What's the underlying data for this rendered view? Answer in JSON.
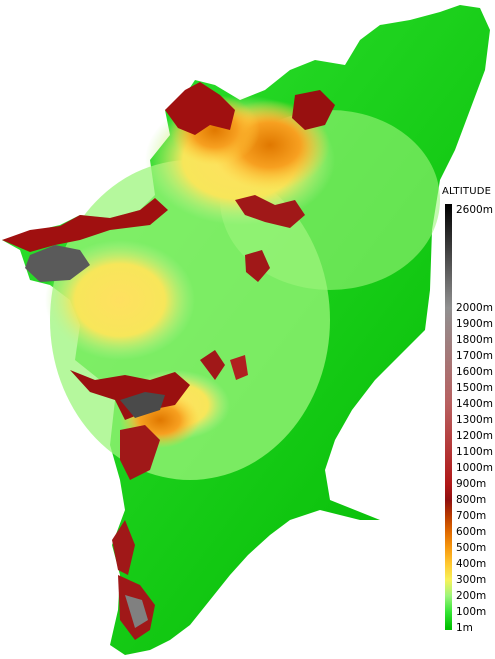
{
  "legend": {
    "title": "ALTITUDE",
    "top_label": "2600m",
    "labels": [
      "2000m",
      "1900m",
      "1800m",
      "1700m",
      "1600m",
      "1500m",
      "1400m",
      "1300m",
      "1200m",
      "1100m",
      "1000m",
      "900m",
      "800m",
      "700m",
      "600m",
      "500m",
      "400m",
      "300m",
      "200m",
      "100m",
      "1m"
    ],
    "color_stops": [
      {
        "value": "1m",
        "color": "#00c000"
      },
      {
        "value": "100m",
        "color": "#34e534"
      },
      {
        "value": "200m",
        "color": "#9cf57c"
      },
      {
        "value": "300m",
        "color": "#f7f25a"
      },
      {
        "value": "400m",
        "color": "#ffc830"
      },
      {
        "value": "500m",
        "color": "#f79a10"
      },
      {
        "value": "600m",
        "color": "#e06a00"
      },
      {
        "value": "700m",
        "color": "#b83a00"
      },
      {
        "value": "800m",
        "color": "#901010"
      },
      {
        "value": "900m",
        "color": "#b01818"
      },
      {
        "value": "1400m",
        "color": "#b86060"
      },
      {
        "value": "2000m",
        "color": "#909090"
      },
      {
        "value": "2600m",
        "color": "#000000"
      }
    ]
  }
}
